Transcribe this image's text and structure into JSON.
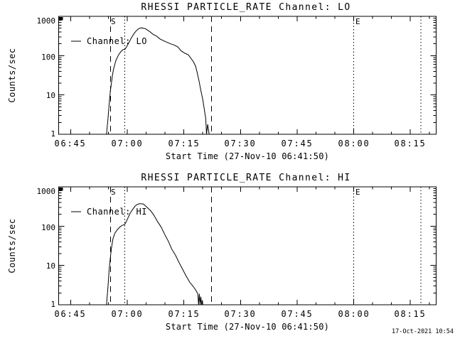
{
  "window": {
    "background": "#ffffff",
    "foreground": "#000000",
    "timestamp": "17-Oct-2021 10:54"
  },
  "chart_data": [
    {
      "type": "line",
      "title": "RHESSI PARTICLE_RATE Channel: LO",
      "xlabel": "Start Time (27-Nov-10 06:41:50)",
      "ylabel": "Counts/sec",
      "yscale": "log",
      "ylim": [
        1,
        1000
      ],
      "xlim_minutes_after_0600_UT": [
        41.8,
        141.8
      ],
      "grid": false,
      "legend_label": "Channel: LO",
      "legend_position": "upper-left-inside",
      "x_ticks": [
        {
          "minute": 45,
          "label": "06:45"
        },
        {
          "minute": 60,
          "label": "07:00"
        },
        {
          "minute": 75,
          "label": "07:15"
        },
        {
          "minute": 90,
          "label": "07:30"
        },
        {
          "minute": 105,
          "label": "07:45"
        },
        {
          "minute": 120,
          "label": "08:00"
        },
        {
          "minute": 135,
          "label": "08:15"
        }
      ],
      "y_ticks": [
        {
          "value": 1000,
          "label": "1000"
        },
        {
          "value": 100,
          "label": "100"
        },
        {
          "value": 10,
          "label": "10"
        },
        {
          "value": 1,
          "label": "1"
        }
      ],
      "markers": [
        {
          "label": "S",
          "style": "dashed",
          "minute": 55.6
        },
        {
          "label": "",
          "style": "dotted",
          "minute": 59.3
        },
        {
          "label": "",
          "style": "dashed",
          "minute": 82.3
        },
        {
          "label": "E",
          "style": "dotted",
          "minute": 120.0
        },
        {
          "label": "",
          "style": "dotted",
          "minute": 137.8
        }
      ],
      "series": [
        {
          "name": "Channel: LO",
          "points_minute_counts": [
            [
              54.5,
              1.0
            ],
            [
              54.9,
              2.5
            ],
            [
              55.2,
              5.8
            ],
            [
              55.5,
              12
            ],
            [
              55.8,
              20
            ],
            [
              56.1,
              33
            ],
            [
              56.4,
              47
            ],
            [
              57.0,
              76
            ],
            [
              57.7,
              105
            ],
            [
              58.3,
              127
            ],
            [
              58.9,
              142
            ],
            [
              59.4,
              145
            ],
            [
              59.9,
              174
            ],
            [
              60.5,
              220
            ],
            [
              61.1,
              285
            ],
            [
              61.8,
              364
            ],
            [
              62.4,
              430
            ],
            [
              63.0,
              480
            ],
            [
              63.6,
              510
            ],
            [
              64.3,
              497
            ],
            [
              64.9,
              478
            ],
            [
              65.8,
              419
            ],
            [
              66.8,
              350
            ],
            [
              67.7,
              316
            ],
            [
              68.7,
              265
            ],
            [
              69.6,
              240
            ],
            [
              70.5,
              220
            ],
            [
              71.5,
              200
            ],
            [
              72.4,
              187
            ],
            [
              73.4,
              167
            ],
            [
              74.3,
              132
            ],
            [
              75.3,
              115
            ],
            [
              76.2,
              105
            ],
            [
              76.8,
              87
            ],
            [
              77.5,
              71
            ],
            [
              78.1,
              54
            ],
            [
              78.5,
              38
            ],
            [
              79.0,
              23
            ],
            [
              79.5,
              13
            ],
            [
              80.0,
              7.7
            ],
            [
              80.4,
              4.4
            ],
            [
              80.8,
              2.5
            ],
            [
              81.0,
              1.0
            ],
            [
              81.3,
              1.8
            ],
            [
              81.7,
              1.0
            ]
          ]
        }
      ]
    },
    {
      "type": "line",
      "title": "RHESSI PARTICLE_RATE Channel: HI",
      "xlabel": "Start Time (27-Nov-10 06:41:50)",
      "ylabel": "Counts/sec",
      "yscale": "log",
      "ylim": [
        1,
        1000
      ],
      "xlim_minutes_after_0600_UT": [
        41.8,
        141.8
      ],
      "grid": false,
      "legend_label": "Channel: HI",
      "legend_position": "upper-left-inside",
      "x_ticks": [
        {
          "minute": 45,
          "label": "06:45"
        },
        {
          "minute": 60,
          "label": "07:00"
        },
        {
          "minute": 75,
          "label": "07:15"
        },
        {
          "minute": 90,
          "label": "07:30"
        },
        {
          "minute": 105,
          "label": "07:45"
        },
        {
          "minute": 120,
          "label": "08:00"
        },
        {
          "minute": 135,
          "label": "08:15"
        }
      ],
      "y_ticks": [
        {
          "value": 1000,
          "label": "1000"
        },
        {
          "value": 100,
          "label": "100"
        },
        {
          "value": 10,
          "label": "10"
        },
        {
          "value": 1,
          "label": "1"
        }
      ],
      "markers": [
        {
          "label": "S",
          "style": "dashed",
          "minute": 55.6
        },
        {
          "label": "",
          "style": "dotted",
          "minute": 59.3
        },
        {
          "label": "",
          "style": "dashed",
          "minute": 82.3
        },
        {
          "label": "E",
          "style": "dotted",
          "minute": 120.0
        },
        {
          "label": "",
          "style": "dotted",
          "minute": 137.8
        }
      ],
      "series": [
        {
          "name": "Channel: HI",
          "points_minute_counts": [
            [
              54.5,
              1.0
            ],
            [
              54.9,
              2.9
            ],
            [
              55.2,
              7.7
            ],
            [
              55.5,
              15
            ],
            [
              55.8,
              27
            ],
            [
              56.2,
              47
            ],
            [
              56.7,
              66
            ],
            [
              57.4,
              82
            ],
            [
              58.0,
              94
            ],
            [
              58.6,
              104
            ],
            [
              59.3,
              110
            ],
            [
              59.6,
              123
            ],
            [
              60.2,
              162
            ],
            [
              60.8,
              215
            ],
            [
              61.5,
              272
            ],
            [
              62.1,
              327
            ],
            [
              62.7,
              358
            ],
            [
              63.3,
              374
            ],
            [
              64.3,
              365
            ],
            [
              65.2,
              304
            ],
            [
              66.2,
              247
            ],
            [
              67.1,
              187
            ],
            [
              68.0,
              132
            ],
            [
              69.0,
              94
            ],
            [
              69.9,
              62
            ],
            [
              70.9,
              41
            ],
            [
              71.8,
              26
            ],
            [
              72.8,
              18
            ],
            [
              73.7,
              12
            ],
            [
              74.6,
              8.2
            ],
            [
              75.6,
              5.4
            ],
            [
              76.5,
              3.8
            ],
            [
              77.5,
              2.9
            ],
            [
              78.1,
              2.4
            ],
            [
              78.7,
              1.9
            ],
            [
              78.9,
              1.0
            ],
            [
              79.1,
              1.9
            ],
            [
              79.3,
              1.0
            ],
            [
              79.5,
              1.6
            ],
            [
              79.7,
              1.0
            ],
            [
              79.9,
              1.3
            ],
            [
              80.0,
              1.0
            ]
          ]
        }
      ]
    }
  ]
}
